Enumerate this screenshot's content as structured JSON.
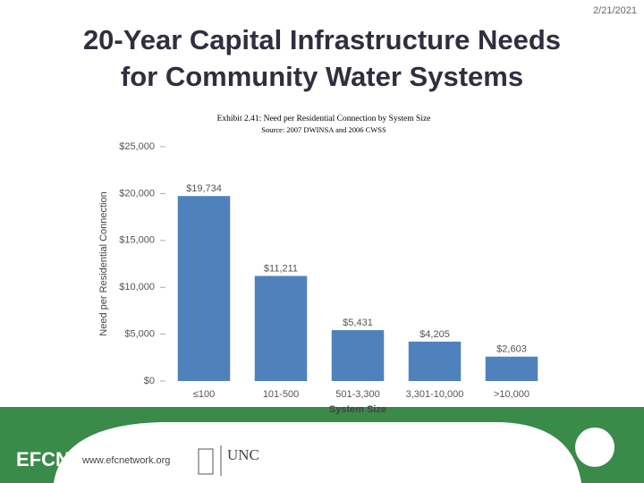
{
  "date": "2/21/2021",
  "title_lines": [
    "20-Year Capital Infrastructure Needs",
    "for Community Water Systems"
  ],
  "footer": {
    "url": "www.efcnetwork.org",
    "logo_left": "EFCN",
    "logo_right": "UNC"
  },
  "chart_data": {
    "type": "bar",
    "title": "Exhibit 2.41: Need per Residential Connection by System Size",
    "subtitle": "Source: 2007 DWINSA and 2006 CWSS",
    "x_label": "System Size",
    "y_label": "Need per Residential Connection",
    "categories": [
      "≤100",
      "101-500",
      "501-3,300",
      "3,301-10,000",
      ">10,000"
    ],
    "values": [
      19734,
      11211,
      5431,
      4205,
      2603
    ],
    "value_labels": [
      "$19,734",
      "$11,211",
      "$5,431",
      "$4,205",
      "$2,603"
    ],
    "color": "#4f81bd",
    "ylim": [
      0,
      25000
    ],
    "yticks": [
      {
        "value": 0,
        "label": "$0"
      },
      {
        "value": 5000,
        "label": "$5,000"
      },
      {
        "value": 10000,
        "label": "$10,000"
      },
      {
        "value": 15000,
        "label": "$15,000"
      },
      {
        "value": 20000,
        "label": "$20,000"
      },
      {
        "value": 25000,
        "label": "$25,000"
      }
    ],
    "grid": false
  }
}
